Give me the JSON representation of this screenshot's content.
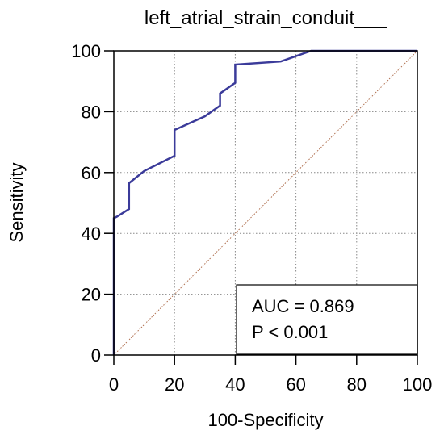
{
  "chart_data": {
    "type": "line",
    "title": "left_atrial_strain_conduit___",
    "xlabel": "100-Specificity",
    "ylabel": "Sensitivity",
    "xlim": [
      0,
      100
    ],
    "ylim": [
      0,
      100
    ],
    "xticks": [
      0,
      20,
      40,
      60,
      80,
      100
    ],
    "yticks": [
      0,
      20,
      40,
      60,
      80,
      100
    ],
    "grid": "dotted",
    "series": [
      {
        "color": "#3b3b9a",
        "x": [
          0,
          0,
          1,
          5,
          5,
          10,
          20,
          20,
          30,
          35,
          35,
          40,
          40,
          55,
          65,
          100
        ],
        "y": [
          0,
          45,
          45.5,
          48,
          56.5,
          60.5,
          65.5,
          74,
          78.5,
          82,
          86,
          89.5,
          95.5,
          96.5,
          100,
          100
        ]
      }
    ],
    "reference_line": {
      "x": [
        0,
        100
      ],
      "y": [
        0,
        100
      ],
      "color": "#b07050"
    },
    "annotation": {
      "lines": [
        "AUC = 0.869",
        "P < 0.001"
      ]
    }
  }
}
